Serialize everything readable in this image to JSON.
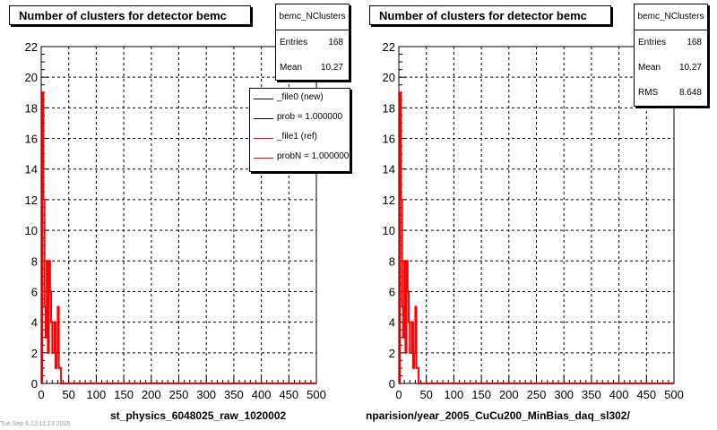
{
  "left": {
    "title": "Number of clusters for detector bemc",
    "stats": {
      "name": "bemc_NClusters",
      "rows": [
        {
          "label": "Entries",
          "value": "168"
        },
        {
          "label": "Mean",
          "value": "10.27"
        }
      ]
    },
    "legend": [
      {
        "text": "_file0 (new)",
        "color": "#000000"
      },
      {
        "text": "prob = 1.000000",
        "color": "#000000"
      },
      {
        "text": "_file1 (ref)",
        "color": "#ff0000"
      },
      {
        "text": "probN = 1.000000",
        "color": "#ff0000"
      }
    ],
    "xlabel": "st_physics_6048025_raw_1020002"
  },
  "right": {
    "title": "Number of clusters for detector bemc",
    "stats": {
      "name": "bemc_NClusters",
      "rows": [
        {
          "label": "Entries",
          "value": "168"
        },
        {
          "label": "Mean",
          "value": "10.27"
        },
        {
          "label": "RMS",
          "value": "8.648"
        }
      ]
    },
    "xlabel": "nparision/year_2005_CuCu200_MinBias_daq_sl302/"
  },
  "footer_text": "Tue Sep  6 12:11:13 2005",
  "chart_data": [
    {
      "type": "line",
      "title": "Number of clusters for detector bemc",
      "xlim": [
        0,
        500
      ],
      "ylim": [
        0,
        22
      ],
      "xticks": [
        0,
        50,
        100,
        150,
        200,
        250,
        300,
        350,
        400,
        450,
        500
      ],
      "yticks": [
        0,
        2,
        4,
        6,
        8,
        10,
        12,
        14,
        16,
        18,
        20,
        22
      ],
      "grid": true,
      "legend_position": "top-right",
      "series": [
        {
          "name": "_file0 (new)",
          "color": "#000000",
          "x": [
            0,
            2,
            4,
            6,
            8,
            10,
            12,
            14,
            16,
            18,
            20,
            22,
            24,
            26,
            28,
            30,
            32,
            34,
            36,
            38,
            40,
            500
          ],
          "y": [
            0,
            19,
            12,
            5,
            3,
            8,
            2,
            8,
            6,
            4,
            2,
            2,
            4,
            1,
            2,
            5,
            1,
            1,
            0,
            0,
            0,
            0
          ]
        },
        {
          "name": "_file1 (ref)",
          "color": "#ff0000",
          "x": [
            0,
            2,
            4,
            6,
            8,
            10,
            12,
            14,
            16,
            18,
            20,
            22,
            24,
            26,
            28,
            30,
            32,
            34,
            36,
            38,
            40,
            500
          ],
          "y": [
            0,
            19,
            12,
            5,
            3,
            8,
            2,
            8,
            6,
            4,
            2,
            2,
            4,
            1,
            2,
            5,
            1,
            1,
            0,
            0,
            0,
            0
          ]
        }
      ]
    },
    {
      "type": "line",
      "title": "Number of clusters for detector bemc",
      "xlim": [
        0,
        500
      ],
      "ylim": [
        0,
        22
      ],
      "xticks": [
        0,
        50,
        100,
        150,
        200,
        250,
        300,
        350,
        400,
        450,
        500
      ],
      "yticks": [
        0,
        2,
        4,
        6,
        8,
        10,
        12,
        14,
        16,
        18,
        20,
        22
      ],
      "grid": true,
      "series": [
        {
          "name": "",
          "color": "#ff0000",
          "x": [
            0,
            2,
            4,
            6,
            8,
            10,
            12,
            14,
            16,
            18,
            20,
            22,
            24,
            26,
            28,
            30,
            32,
            34,
            36,
            38,
            40,
            500
          ],
          "y": [
            0,
            19,
            12,
            5,
            3,
            8,
            2,
            8,
            6,
            4,
            2,
            2,
            4,
            1,
            2,
            5,
            1,
            1,
            0,
            0,
            0,
            0
          ]
        }
      ]
    }
  ]
}
